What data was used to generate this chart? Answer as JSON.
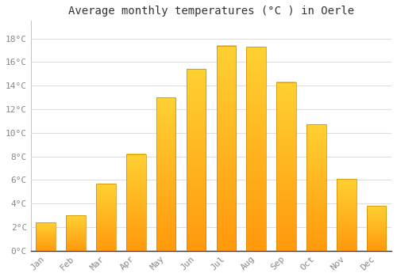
{
  "title": "Average monthly temperatures (°C ) in Oerle",
  "months": [
    "Jan",
    "Feb",
    "Mar",
    "Apr",
    "May",
    "Jun",
    "Jul",
    "Aug",
    "Sep",
    "Oct",
    "Nov",
    "Dec"
  ],
  "temperatures": [
    2.4,
    3.0,
    5.7,
    8.2,
    13.0,
    15.4,
    17.4,
    17.3,
    14.3,
    10.7,
    6.1,
    3.8
  ],
  "bar_color": "#FFA500",
  "bar_edge_color": "#CC8800",
  "background_color": "#FFFFFF",
  "plot_bg_color": "#FFFFFF",
  "grid_color": "#DDDDDD",
  "ytick_labels": [
    "0°C",
    "2°C",
    "4°C",
    "6°C",
    "8°C",
    "10°C",
    "12°C",
    "14°C",
    "16°C",
    "18°C"
  ],
  "ytick_values": [
    0,
    2,
    4,
    6,
    8,
    10,
    12,
    14,
    16,
    18
  ],
  "ylim": [
    0,
    19.5
  ],
  "title_fontsize": 10,
  "tick_fontsize": 8,
  "tick_color": "#888888",
  "bar_width": 0.65
}
